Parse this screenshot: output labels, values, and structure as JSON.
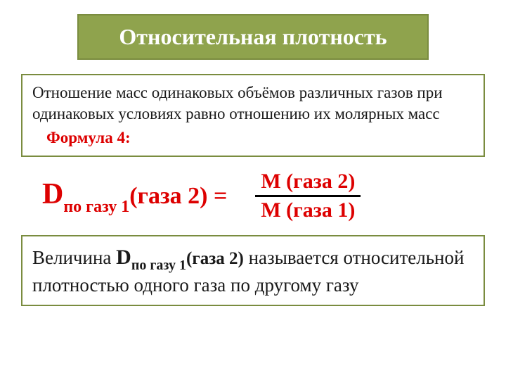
{
  "title": "Относительная плотность",
  "definition": {
    "text": "Отношение масс одинаковых объёмов различных газов при одинаковых условиях равно отношению их молярных масс",
    "formula_label": "Формула 4:"
  },
  "formula": {
    "D": "D",
    "sub": "по газу 1",
    "arg_eq": "(газа 2) =",
    "numerator": "M (газа 2)",
    "denominator": "M (газа 1)"
  },
  "conclusion": {
    "prefix": "Величина ",
    "D": "D",
    "sub": "по газу 1",
    "gaz2": "(газа 2)",
    "suffix": " называется относительной плотностью одного газа по другому газу"
  },
  "colors": {
    "title_bg": "#8fa34d",
    "border": "#7a8c3f",
    "accent": "#dd0000",
    "text": "#1a1a1a",
    "bar": "#000000"
  }
}
